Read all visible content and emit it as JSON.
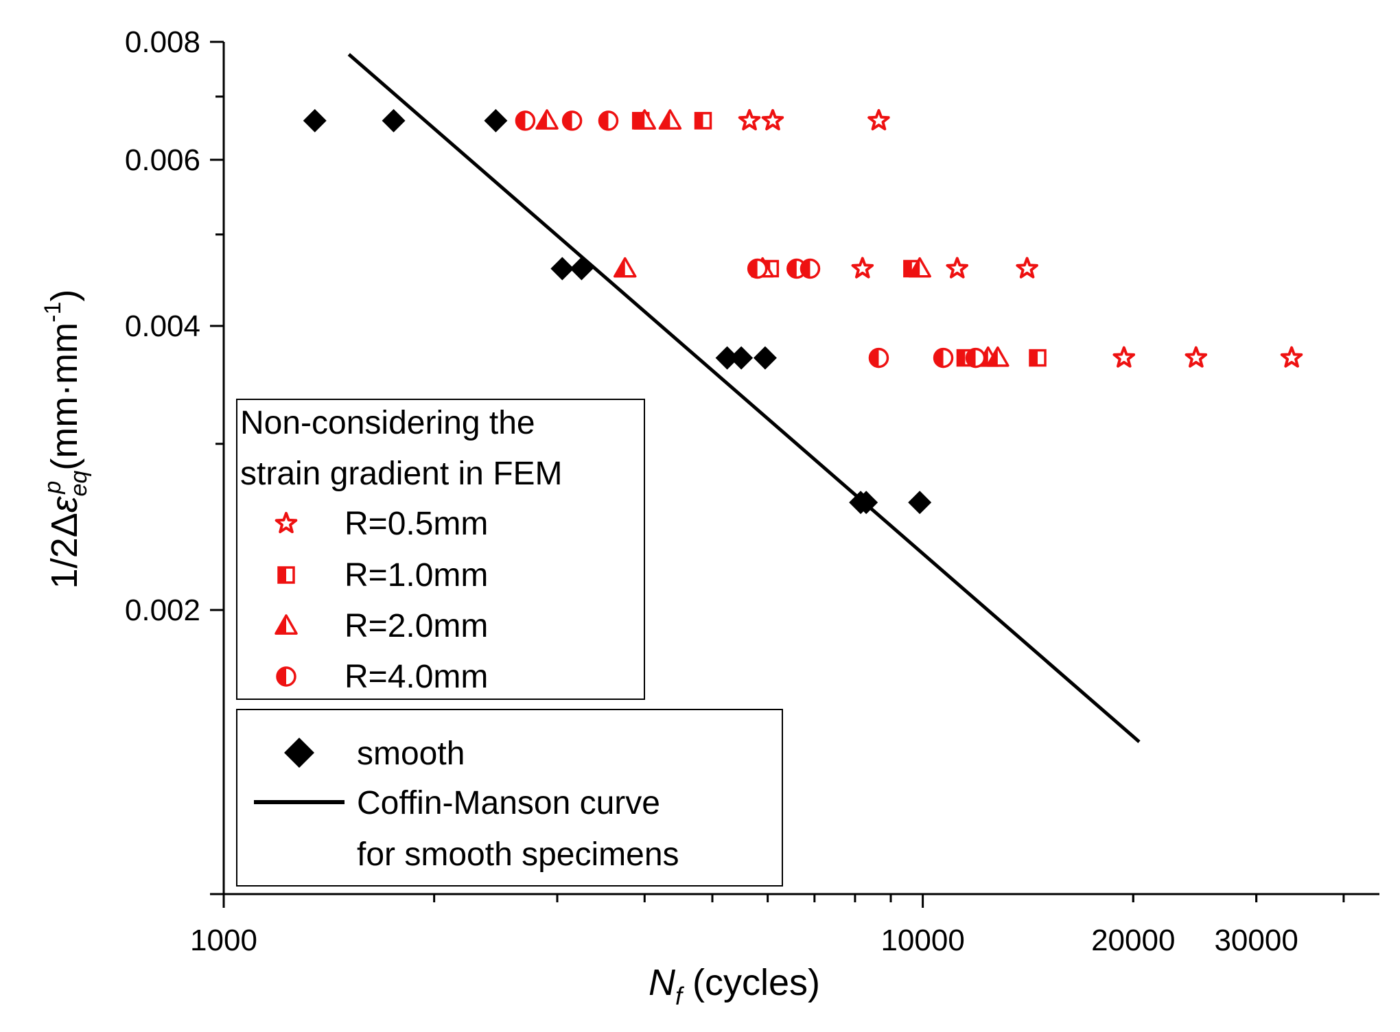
{
  "chart_data": {
    "type": "scatter",
    "xscale": "log",
    "yscale": "log",
    "xlim": [
      1000,
      45000
    ],
    "ylim": [
      0.001,
      0.008
    ],
    "xlabel": "N_f (cycles)",
    "xlabel_main": "N",
    "xlabel_sub": "f",
    "xlabel_unit": " (cycles)",
    "ylabel_prefix": "1/2Δ",
    "ylabel_symbol": "ε",
    "ylabel_sup": "p",
    "ylabel_sub": "eq",
    "ylabel_unit_open": " (mm·mm",
    "ylabel_unit_sup": "-1",
    "ylabel_unit_close": ")",
    "x_tick_labels": [
      {
        "value": 1000,
        "label": "1000"
      },
      {
        "value": 10000,
        "label": "10000"
      },
      {
        "value": 20000,
        "label": "20000"
      },
      {
        "value": 30000,
        "label": "30000"
      }
    ],
    "x_minor_ticks": [
      2000,
      3000,
      4000,
      5000,
      6000,
      7000,
      8000,
      9000,
      20000,
      30000,
      40000
    ],
    "y_tick_labels": [
      {
        "value": 0.002,
        "label": "0.002"
      },
      {
        "value": 0.004,
        "label": "0.004"
      },
      {
        "value": 0.006,
        "label": "0.006"
      },
      {
        "value": 0.008,
        "label": "0.008"
      }
    ],
    "y_minor_ticks": [
      0.003,
      0.005,
      0.007
    ],
    "series": [
      {
        "name": "smooth",
        "marker": "diamond",
        "color": "#000000",
        "points": [
          [
            1350,
            0.0066
          ],
          [
            1750,
            0.0066
          ],
          [
            2450,
            0.0066
          ],
          [
            3050,
            0.0046
          ],
          [
            3250,
            0.0046
          ],
          [
            5250,
            0.0037
          ],
          [
            5500,
            0.0037
          ],
          [
            5950,
            0.0037
          ],
          [
            8150,
            0.0026
          ],
          [
            8300,
            0.0026
          ],
          [
            9900,
            0.0026
          ]
        ]
      },
      {
        "name": "R=0.5mm",
        "marker": "star",
        "color": "#ee1111",
        "points": [
          [
            5650,
            0.0066
          ],
          [
            6100,
            0.0066
          ],
          [
            8650,
            0.0066
          ],
          [
            8200,
            0.0046
          ],
          [
            11200,
            0.0046
          ],
          [
            14100,
            0.0046
          ],
          [
            19400,
            0.0037
          ],
          [
            24600,
            0.0037
          ],
          [
            33700,
            0.0037
          ]
        ]
      },
      {
        "name": "R=1.0mm",
        "marker": "half-square",
        "color": "#ee1111",
        "points": [
          [
            3950,
            0.0066
          ],
          [
            4850,
            0.0066
          ],
          [
            6050,
            0.0046
          ],
          [
            9650,
            0.0046
          ],
          [
            11500,
            0.0037
          ],
          [
            14600,
            0.0037
          ]
        ]
      },
      {
        "name": "R=2.0mm",
        "marker": "half-triangle",
        "color": "#ee1111",
        "points": [
          [
            2900,
            0.0066
          ],
          [
            4000,
            0.0066
          ],
          [
            4350,
            0.0066
          ],
          [
            3750,
            0.0046
          ],
          [
            5900,
            0.0046
          ],
          [
            9900,
            0.0046
          ],
          [
            12400,
            0.0037
          ],
          [
            12800,
            0.0037
          ]
        ]
      },
      {
        "name": "R=4.0mm",
        "marker": "half-circle",
        "color": "#ee1111",
        "points": [
          [
            2700,
            0.0066
          ],
          [
            3150,
            0.0066
          ],
          [
            3550,
            0.0066
          ],
          [
            5800,
            0.0046
          ],
          [
            6600,
            0.0046
          ],
          [
            6900,
            0.0046
          ],
          [
            8650,
            0.0037
          ],
          [
            10700,
            0.0037
          ],
          [
            11900,
            0.0037
          ]
        ]
      }
    ],
    "fit_line": {
      "name": "Coffin-Manson curve for smooth specimens",
      "color": "#000000",
      "points": [
        [
          1510,
          0.00776
        ],
        [
          20400,
          0.00145
        ]
      ]
    },
    "legend_red": {
      "title_line1": "Non-considering the",
      "title_line2": "strain gradient in FEM",
      "entries": [
        "R=0.5mm",
        "R=1.0mm",
        "R=2.0mm",
        "R=4.0mm"
      ]
    },
    "legend_black": {
      "entry_smooth": "smooth",
      "entry_line1": "Coffin-Manson curve",
      "entry_line2": "for smooth specimens"
    }
  }
}
